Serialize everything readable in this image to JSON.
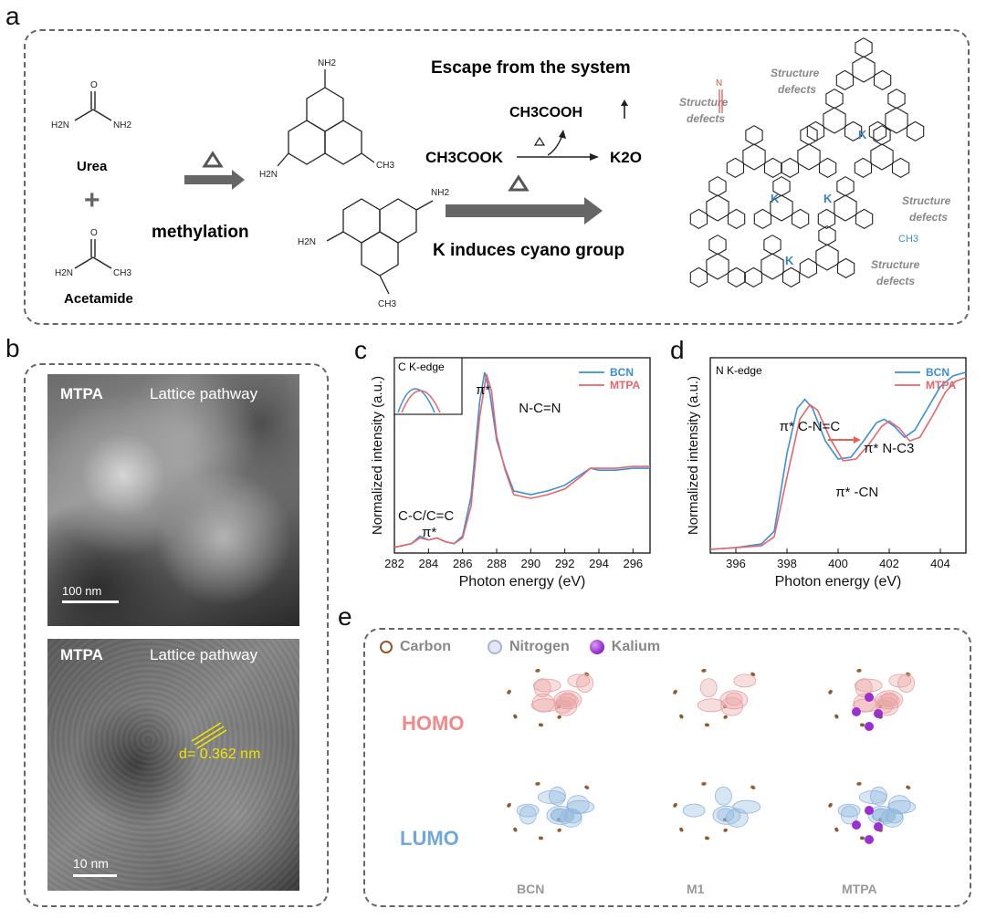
{
  "panels": {
    "a": "a",
    "b": "b",
    "c": "c",
    "d": "d",
    "e": "e"
  },
  "scheme": {
    "urea": "Urea",
    "acetamide": "Acetamide",
    "plus": "+",
    "methylation": "methylation",
    "escape": "Escape from the system",
    "acetic_acid": "CH3COOH",
    "ch3cook": "CH3COOK",
    "k2o": "K2O",
    "k_cyano": "K induces cyano group",
    "nh2": "NH2",
    "h2n": "H2N",
    "o": "O",
    "n": "N",
    "ch3": "CH3",
    "structure_defects": [
      "Structure defects",
      "Structure defects",
      "Structure defects",
      "Structure defects"
    ],
    "k_label": "K"
  },
  "tem": {
    "top": {
      "sample": "MTPA",
      "title": "Lattice pathway",
      "scale": "100 nm"
    },
    "bottom": {
      "sample": "MTPA",
      "title": "Lattice pathway",
      "scale": "10 nm",
      "d_spacing": "d= 0.362 nm"
    }
  },
  "chart_data": [
    {
      "type": "line",
      "panel": "c",
      "title": "",
      "xlabel": "Photon energy (eV)",
      "ylabel": "Normalized intensity (a.u.)",
      "xlim": [
        282,
        297
      ],
      "xticks": [
        282,
        284,
        286,
        288,
        290,
        292,
        294,
        296
      ],
      "edge_label": "C K-edge",
      "annotations": [
        "π*",
        "N-C=N",
        "C-C/C=C",
        "π*"
      ],
      "legend_position": "top-right",
      "series": [
        {
          "name": "BCN",
          "color": "#3b8fd6",
          "x": [
            282,
            283,
            283.5,
            284,
            284.5,
            285,
            285.5,
            286,
            286.5,
            287,
            287.3,
            287.6,
            288,
            288.5,
            289,
            290,
            291,
            292,
            293,
            293.5,
            294,
            295,
            296,
            297
          ],
          "y": [
            0.03,
            0.05,
            0.09,
            0.07,
            0.08,
            0.06,
            0.05,
            0.09,
            0.3,
            0.8,
            0.96,
            0.85,
            0.6,
            0.45,
            0.33,
            0.31,
            0.33,
            0.36,
            0.42,
            0.45,
            0.44,
            0.44,
            0.45,
            0.45
          ]
        },
        {
          "name": "MTPA",
          "color": "#e8656a",
          "x": [
            282,
            283,
            283.5,
            284,
            284.5,
            285,
            285.5,
            286,
            286.5,
            287,
            287.4,
            287.7,
            288,
            288.5,
            289,
            290,
            291,
            292,
            293,
            293.5,
            294,
            295,
            296,
            297
          ],
          "y": [
            0.03,
            0.05,
            0.08,
            0.07,
            0.08,
            0.06,
            0.05,
            0.08,
            0.25,
            0.72,
            0.95,
            0.86,
            0.62,
            0.44,
            0.31,
            0.29,
            0.31,
            0.34,
            0.41,
            0.45,
            0.45,
            0.45,
            0.46,
            0.46
          ]
        }
      ]
    },
    {
      "type": "line",
      "panel": "d",
      "title": "",
      "xlabel": "Photon energy (eV)",
      "ylabel": "Normalized intensity (a.u.)",
      "xlim": [
        395,
        405
      ],
      "xticks": [
        396,
        398,
        400,
        402,
        404
      ],
      "edge_label": "N K-edge",
      "annotations": [
        "π* C-N=C",
        "π* N-C3",
        "π* -CN"
      ],
      "legend_position": "top-right",
      "series": [
        {
          "name": "BCN",
          "color": "#3b8fd6",
          "x": [
            395,
            396,
            397,
            397.5,
            398,
            398.4,
            398.7,
            399,
            399.5,
            400,
            400.5,
            401,
            401.5,
            401.8,
            402.2,
            402.6,
            403,
            403.5,
            404,
            404.5,
            405
          ],
          "y": [
            0.02,
            0.03,
            0.05,
            0.12,
            0.55,
            0.8,
            0.85,
            0.8,
            0.62,
            0.52,
            0.53,
            0.62,
            0.72,
            0.74,
            0.7,
            0.64,
            0.68,
            0.8,
            0.92,
            0.98,
            1.0
          ]
        },
        {
          "name": "MTPA",
          "color": "#e8656a",
          "x": [
            395,
            396,
            397,
            397.5,
            398,
            398.5,
            398.9,
            399.2,
            399.7,
            400.2,
            400.7,
            401.2,
            401.7,
            402,
            402.4,
            402.8,
            403.2,
            403.7,
            404.2,
            404.6,
            405
          ],
          "y": [
            0.02,
            0.03,
            0.04,
            0.09,
            0.42,
            0.74,
            0.82,
            0.79,
            0.63,
            0.51,
            0.52,
            0.6,
            0.7,
            0.73,
            0.69,
            0.62,
            0.64,
            0.76,
            0.89,
            0.95,
            0.97
          ]
        }
      ]
    }
  ],
  "orbitals": {
    "legend": [
      {
        "name": "Carbon",
        "color": "#8b5a2b"
      },
      {
        "name": "Nitrogen",
        "color": "#a7b3d6"
      },
      {
        "name": "Kalium",
        "color": "#9b2fd1"
      }
    ],
    "rows": [
      "HOMO",
      "LUMO"
    ],
    "columns": [
      "BCN",
      "M1",
      "MTPA"
    ],
    "homo_color": "#e8a0a0",
    "lumo_color": "#8fb6dd"
  }
}
